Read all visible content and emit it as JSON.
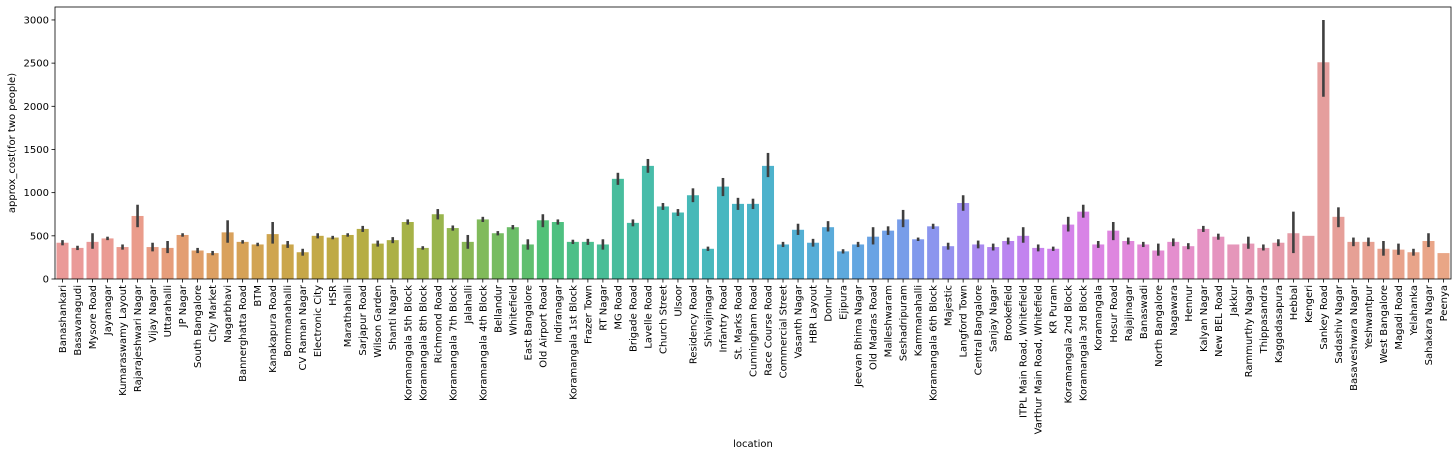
{
  "chart_data": {
    "type": "bar",
    "xlabel": "location",
    "ylabel": "approx_cost(for two people)",
    "ylim": [
      0,
      3150
    ],
    "yticks": [
      0,
      500,
      1000,
      1500,
      2000,
      2500,
      3000
    ],
    "grid": false,
    "error_bars": true,
    "categories": [
      "Banashankari",
      "Basavanagudi",
      "Mysore Road",
      "Jayanagar",
      "Kumaraswamy Layout",
      "Rajarajeshwari Nagar",
      "Vijay Nagar",
      "Uttarahalli",
      "JP Nagar",
      "South Bangalore",
      "City Market",
      "Nagarbhavi",
      "Bannerghatta Road",
      "BTM",
      "Kanakapura Road",
      "Bommanahalli",
      "CV Raman Nagar",
      "Electronic City",
      "HSR",
      "Marathahalli",
      "Sarjapur Road",
      "Wilson Garden",
      "Shanti Nagar",
      "Koramangala 5th Block",
      "Koramangala 8th Block",
      "Richmond Road",
      "Koramangala 7th Block",
      "Jalahalli",
      "Koramangala 4th Block",
      "Bellandur",
      "Whitefield",
      "East Bangalore",
      "Old Airport Road",
      "Indiranagar",
      "Koramangala 1st Block",
      "Frazer Town",
      "RT Nagar",
      "MG Road",
      "Brigade Road",
      "Lavelle Road",
      "Church Street",
      "Ulsoor",
      "Residency Road",
      "Shivajinagar",
      "Infantry Road",
      "St. Marks Road",
      "Cunningham Road",
      "Race Course Road",
      "Commercial Street",
      "Vasanth Nagar",
      "HBR Layout",
      "Domlur",
      "Ejipura",
      "Jeevan Bhima Nagar",
      "Old Madras Road",
      "Malleshwaram",
      "Seshadripuram",
      "Kammanahalli",
      "Koramangala 6th Block",
      "Majestic",
      "Langford Town",
      "Central Bangalore",
      "Sanjay Nagar",
      "Brookefield",
      "ITPL Main Road, Whitefield",
      "Varthur Main Road, Whitefield",
      "KR Puram",
      "Koramangala 2nd Block",
      "Koramangala 3rd Block",
      "Koramangala",
      "Hosur Road",
      "Rajajinagar",
      "Banaswadi",
      "North Bangalore",
      "Nagawara",
      "Hennur",
      "Kalyan Nagar",
      "New BEL Road",
      "Jakkur",
      "Rammurthy Nagar",
      "Thippasandra",
      "Kaggadasapura",
      "Hebbal",
      "Kengeri",
      "Sankey Road",
      "Sadashiv Nagar",
      "Basaveshwara Nagar",
      "Yeshwantpur",
      "West Bangalore",
      "Magadi Road",
      "Yelahanka",
      "Sahakara Nagar",
      "Peenya"
    ],
    "values": [
      420,
      360,
      430,
      470,
      370,
      730,
      370,
      360,
      510,
      330,
      300,
      540,
      430,
      400,
      520,
      400,
      310,
      500,
      480,
      510,
      580,
      410,
      450,
      660,
      360,
      750,
      590,
      430,
      690,
      530,
      600,
      400,
      680,
      660,
      430,
      430,
      400,
      1160,
      650,
      1310,
      840,
      770,
      970,
      350,
      1070,
      870,
      870,
      1310,
      400,
      570,
      420,
      600,
      320,
      400,
      490,
      560,
      690,
      460,
      610,
      380,
      880,
      400,
      370,
      440,
      500,
      360,
      350,
      630,
      780,
      400,
      560,
      440,
      400,
      330,
      430,
      380,
      580,
      490,
      400,
      410,
      360,
      420,
      530,
      500,
      2510,
      720,
      430,
      430,
      350,
      340,
      310,
      440,
      300
    ],
    "err_low": [
      390,
      335,
      350,
      450,
      340,
      600,
      320,
      300,
      490,
      300,
      275,
      420,
      410,
      380,
      410,
      360,
      270,
      470,
      460,
      490,
      545,
      375,
      415,
      630,
      340,
      690,
      560,
      350,
      660,
      505,
      575,
      340,
      600,
      630,
      405,
      395,
      340,
      1090,
      610,
      1230,
      800,
      730,
      890,
      325,
      960,
      800,
      810,
      1180,
      370,
      510,
      375,
      550,
      295,
      370,
      400,
      510,
      600,
      440,
      580,
      340,
      790,
      355,
      330,
      400,
      420,
      320,
      325,
      550,
      710,
      360,
      450,
      400,
      370,
      270,
      380,
      345,
      545,
      455,
      400,
      350,
      330,
      380,
      300,
      500,
      2110,
      600,
      380,
      380,
      270,
      280,
      270,
      370,
      300
    ],
    "err_high": [
      450,
      385,
      530,
      490,
      400,
      860,
      420,
      440,
      530,
      360,
      325,
      680,
      450,
      420,
      660,
      440,
      350,
      530,
      500,
      530,
      615,
      445,
      485,
      690,
      380,
      810,
      620,
      510,
      720,
      555,
      625,
      460,
      750,
      690,
      455,
      465,
      460,
      1230,
      690,
      1390,
      880,
      810,
      1050,
      375,
      1170,
      940,
      930,
      1460,
      430,
      640,
      465,
      670,
      345,
      430,
      600,
      610,
      800,
      480,
      640,
      420,
      970,
      445,
      410,
      480,
      600,
      400,
      375,
      720,
      860,
      440,
      660,
      480,
      430,
      410,
      470,
      415,
      615,
      525,
      400,
      490,
      400,
      460,
      780,
      500,
      3000,
      830,
      480,
      480,
      440,
      410,
      350,
      530,
      300
    ],
    "colors": [
      "#ea9a98",
      "#ea9a98",
      "#ea9a98",
      "#ea9b93",
      "#ea9b8f",
      "#ea9c8b",
      "#e89d84",
      "#e69d7b",
      "#e39e72",
      "#e09f6a",
      "#dda063",
      "#d9a15c",
      "#d6a257",
      "#d2a453",
      "#cfa54f",
      "#cba64b",
      "#c7a748",
      "#c3a946",
      "#bfaa45",
      "#bbab44",
      "#b6ad44",
      "#b1ae44",
      "#acb045",
      "#a6b247",
      "#a0b34a",
      "#99b54d",
      "#92b751",
      "#8ab856",
      "#81ba5b",
      "#77bc61",
      "#6cbd68",
      "#60bf6f",
      "#52c178",
      "#4ec080",
      "#4dbf88",
      "#4bbf90",
      "#49be97",
      "#48bd9d",
      "#47bca3",
      "#47bca9",
      "#47bbae",
      "#47bab3",
      "#47b9b8",
      "#48b8bc",
      "#48b7c0",
      "#4ab5c4",
      "#4bb4c8",
      "#4db2cc",
      "#50b1d0",
      "#53afd3",
      "#56add7",
      "#5aabda",
      "#5ea9dd",
      "#63a6e1",
      "#69a3e4",
      "#70a0e7",
      "#789de9",
      "#8199ec",
      "#8b95ee",
      "#9591ef",
      "#9f8df0",
      "#a98af0",
      "#b287f0",
      "#ba85f0",
      "#c283ef",
      "#c982ee",
      "#cf82ec",
      "#d482e9",
      "#d883e6",
      "#db84e3",
      "#de86df",
      "#e088db",
      "#e28ad7",
      "#e38cd3",
      "#e48ece",
      "#e590c9",
      "#e592c4",
      "#e594bf",
      "#e596ba",
      "#e597b5",
      "#e599b0",
      "#e59aab",
      "#e59ba6",
      "#e59da2",
      "#e59e9d",
      "#e69f99",
      "#e6a095",
      "#e7a192",
      "#e7a28f",
      "#e8a38c",
      "#e8a48a",
      "#e9a588",
      "#e9a686"
    ]
  }
}
